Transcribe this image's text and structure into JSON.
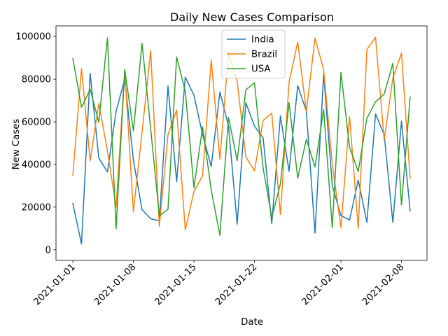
{
  "chart_data": {
    "type": "line",
    "title": "Daily New Cases Comparison",
    "xlabel": "Date",
    "ylabel": "New Cases",
    "x": [
      "2021-01-01",
      "2021-01-02",
      "2021-01-03",
      "2021-01-04",
      "2021-01-05",
      "2021-01-06",
      "2021-01-07",
      "2021-01-08",
      "2021-01-09",
      "2021-01-10",
      "2021-01-11",
      "2021-01-12",
      "2021-01-13",
      "2021-01-14",
      "2021-01-15",
      "2021-01-16",
      "2021-01-17",
      "2021-01-18",
      "2021-01-19",
      "2021-01-20",
      "2021-01-21",
      "2021-01-22",
      "2021-01-23",
      "2021-01-24",
      "2021-01-25",
      "2021-01-26",
      "2021-01-27",
      "2021-01-28",
      "2021-01-29",
      "2021-01-30",
      "2021-01-31",
      "2021-02-01",
      "2021-02-02",
      "2021-02-03",
      "2021-02-04",
      "2021-02-05",
      "2021-02-06",
      "2021-02-07",
      "2021-02-08",
      "2021-02-09"
    ],
    "x_ticks": [
      "2021-01-01",
      "2021-01-08",
      "2021-01-15",
      "2021-01-22",
      "2021-02-01",
      "2021-02-08"
    ],
    "y_ticks": [
      0,
      20000,
      40000,
      60000,
      80000,
      100000
    ],
    "ylim": [
      -5000,
      105000
    ],
    "grid": false,
    "legend_position": "upper center",
    "series": [
      {
        "name": "India",
        "color": "#1f77b4",
        "values": [
          21700,
          2700,
          82800,
          43000,
          36500,
          65000,
          80000,
          42000,
          18800,
          14500,
          13600,
          76800,
          32000,
          81000,
          72500,
          54000,
          39000,
          74000,
          58000,
          12000,
          69000,
          58000,
          52500,
          12200,
          62800,
          36800,
          77000,
          65000,
          7800,
          82500,
          30000,
          16000,
          14000,
          32700,
          12800,
          63700,
          54000,
          12800,
          60300,
          18300
        ]
      },
      {
        "name": "Brazil",
        "color": "#ff7f0e",
        "values": [
          35000,
          85000,
          41800,
          68600,
          46500,
          20000,
          84300,
          17800,
          55000,
          93500,
          10900,
          54000,
          65500,
          9200,
          27300,
          34700,
          89000,
          42500,
          92500,
          79000,
          43600,
          37000,
          60700,
          64000,
          16500,
          78600,
          97500,
          65000,
          99300,
          84400,
          40000,
          10400,
          62400,
          10000,
          94000,
          99600,
          51500,
          80500,
          92200,
          33500
        ]
      },
      {
        "name": "USA",
        "color": "#2ca02c",
        "values": [
          89700,
          66800,
          75300,
          59800,
          99400,
          9800,
          84500,
          55800,
          96800,
          56700,
          15800,
          19000,
          90400,
          74300,
          29000,
          57700,
          28000,
          6800,
          62100,
          41800,
          75000,
          78300,
          38300,
          15000,
          31000,
          69000,
          33600,
          51800,
          38800,
          65800,
          10300,
          83200,
          48000,
          36700,
          61700,
          69400,
          73000,
          87400,
          21000,
          71700
        ]
      }
    ]
  }
}
